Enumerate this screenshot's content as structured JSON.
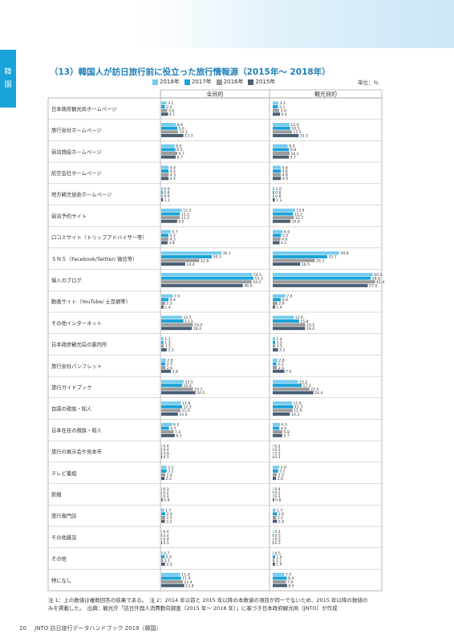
{
  "sidebar": {
    "tab_char_1": "韓",
    "tab_char_2": "国"
  },
  "title": "（13）韓国人が訪日旅行前に役立った旅行情報源（2015年～ 2018年）",
  "unit": "単位：％",
  "legend": [
    {
      "label": "2018年",
      "color": "#74cbee"
    },
    {
      "label": "2017年",
      "color": "#1aa3d8"
    },
    {
      "label": "2016年",
      "color": "#9b9b9b"
    },
    {
      "label": "2015年",
      "color": "#4a5f74"
    }
  ],
  "chart_data": {
    "type": "bar",
    "orientation": "horizontal",
    "panels": [
      "全目的",
      "観光目的"
    ],
    "series_names": [
      "2018年",
      "2017年",
      "2016年",
      "2015年"
    ],
    "categories": [
      "日本政府観光局ホームページ",
      "旅行会社ホームページ",
      "宿泊施設ホームページ",
      "航空会社ホームページ",
      "地方観光協会ホームページ",
      "宿泊予約サイト",
      "口コミサイト（トリップアドバイザー等）",
      "ＳＮＳ（Facebook/Twitter/ 微信等）",
      "個人のブログ",
      "動画サイト（YouTube/ 土豆網等）",
      "その他インターネット",
      "日本政府観光局の案内所",
      "旅行会社パンフレット",
      "旅行ガイドブック",
      "自国の親族・知人",
      "日本在住の親族・知人",
      "旅行の展示会や見本市",
      "テレビ番組",
      "新聞",
      "旅行専門誌",
      "その他雑誌",
      "その他",
      "特になし"
    ],
    "values_all_purpose": [
      [
        3.1,
        2.2,
        3.6,
        4.1
      ],
      [
        8.8,
        9.6,
        10.1,
        13.3
      ],
      [
        8.0,
        8.5,
        9.7,
        8.7
      ],
      [
        4.4,
        4.4,
        4.5,
        4.4
      ],
      [
        0.9,
        0.8,
        0.9,
        1.1
      ],
      [
        12.3,
        11.2,
        11.2,
        9.5
      ],
      [
        5.7,
        4.3,
        4.3,
        3.8
      ],
      [
        36.1,
        30.3,
        22.8,
        14.4
      ],
      [
        54.5,
        55.3,
        54.2,
        48.9
      ],
      [
        7.0,
        4.4,
        2.3,
        1.4
      ],
      [
        12.5,
        13.3,
        19.0,
        18.4
      ],
      [
        1.3,
        1.3,
        1.5,
        3.3
      ],
      [
        2.8,
        2.5,
        2.6,
        5.8
      ],
      [
        13.5,
        12.6,
        19.1,
        20.5
      ],
      [
        11.8,
        12.5,
        11.6,
        10.0
      ],
      [
        6.5,
        4.7,
        7.4,
        8.1
      ],
      [
        0.4,
        0.4,
        0.6,
        0.5
      ],
      [
        3.2,
        3.2,
        2.4,
        2.0
      ],
      [
        0.3,
        0.2,
        0.3,
        0.8
      ],
      [
        1.7,
        2.4,
        2.3,
        2.2
      ],
      [
        0.4,
        0.4,
        0.4,
        0.5
      ],
      [
        0.7,
        2.0,
        1.1,
        2.3
      ],
      [
        11.4,
        11.9,
        12.9,
        13.8
      ]
    ],
    "values_sightseeing": [
      [
        3.3,
        3.1,
        3.9,
        4.4
      ],
      [
        10.0,
        10.5,
        11.5,
        15.5
      ],
      [
        9.0,
        9.8,
        10.1,
        9.7
      ],
      [
        4.8,
        4.8,
        4.8,
        4.9
      ],
      [
        1.0,
        0.8,
        0.8,
        1.3
      ],
      [
        13.4,
        12.2,
        12.7,
        10.6
      ],
      [
        6.0,
        5.0,
        4.6,
        4.1
      ],
      [
        39.8,
        32.7,
        25.3,
        16.5
      ],
      [
        60.0,
        58.8,
        61.4,
        57.0
      ],
      [
        7.6,
        4.8,
        2.8,
        1.4
      ],
      [
        12.6,
        15.8,
        19.5,
        19.4
      ],
      [
        1.4,
        1.5,
        1.5,
        3.2
      ],
      [
        2.8,
        2.2,
        2.5,
        7.0
      ],
      [
        15.2,
        17.3,
        22.0,
        24.4
      ],
      [
        11.6,
        12.3,
        11.9,
        10.3
      ],
      [
        4.3,
        4.0,
        5.8,
        5.7
      ],
      [
        0.3,
        0.3,
        0.3,
        0.3
      ],
      [
        3.9,
        3.2,
        2.5,
        2.0
      ],
      [
        0.4,
        0.2,
        0.3,
        0.8
      ],
      [
        1.7,
        2.6,
        2.1,
        2.6
      ],
      [
        0.3,
        0.5,
        0.5,
        0.5
      ],
      [
        0.5,
        1.4,
        1.1,
        1.4
      ],
      [
        7.0,
        8.4,
        7.9,
        8.6
      ]
    ]
  },
  "notes": {
    "line1": "注 1：上の数値は複数回答の結果である。　注 2：2014 年以前と 2015 年以降の本数値の項目が同一でないため、2015 年以降の数値の",
    "line2": "みを掲載した。　出典：観光庁「訪日外国人消費動向調査（2015 年～ 2018 年）」に基づき日本政府観光局（JNTO）が作成"
  },
  "footer": {
    "page_number": "20",
    "book_title": "JNTO 訪日旅行データハンドブック 2019（韓国）"
  }
}
